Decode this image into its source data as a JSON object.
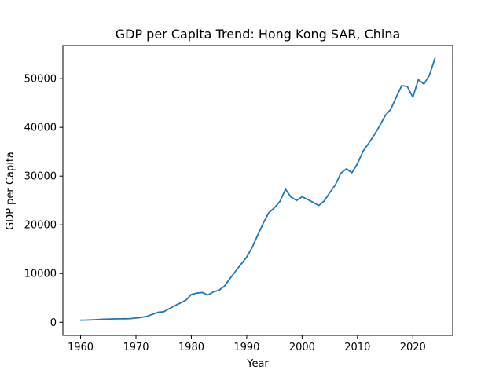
{
  "chart_data": {
    "type": "line",
    "title": "GDP per Capita Trend: Hong Kong SAR, China",
    "xlabel": "Year",
    "ylabel": "GDP per Capita",
    "xlim": [
      1956.8,
      2027.2
    ],
    "ylim": [
      -2700,
      56800
    ],
    "xticks": [
      1960,
      1970,
      1980,
      1990,
      2000,
      2010,
      2020
    ],
    "yticks": [
      0,
      10000,
      20000,
      30000,
      40000,
      50000
    ],
    "grid": false,
    "line_color": "#1f77b4",
    "series": [
      {
        "x": [
          1960,
          1961,
          1962,
          1963,
          1964,
          1965,
          1966,
          1967,
          1968,
          1969,
          1970,
          1971,
          1972,
          1973,
          1974,
          1975,
          1976,
          1977,
          1978,
          1979,
          1980,
          1981,
          1982,
          1983,
          1984,
          1985,
          1986,
          1987,
          1988,
          1989,
          1990,
          1991,
          1992,
          1993,
          1994,
          1995,
          1996,
          1997,
          1998,
          1999,
          2000,
          2001,
          2002,
          2003,
          2004,
          2005,
          2006,
          2007,
          2008,
          2009,
          2010,
          2011,
          2012,
          2013,
          2014,
          2015,
          2016,
          2017,
          2018,
          2019,
          2020,
          2021,
          2022,
          2023,
          2024
        ],
        "values": [
          430,
          440,
          480,
          540,
          620,
          650,
          690,
          710,
          720,
          750,
          870,
          1000,
          1200,
          1650,
          2050,
          2150,
          2780,
          3400,
          3950,
          4500,
          5700,
          5990,
          6100,
          5600,
          6250,
          6550,
          7450,
          9000,
          10500,
          11950,
          13400,
          15400,
          17900,
          20350,
          22500,
          23500,
          24800,
          27300,
          25700,
          25000,
          25750,
          25200,
          24600,
          23950,
          24900,
          26600,
          28200,
          30600,
          31500,
          30700,
          32550,
          35100,
          36700,
          38400,
          40300,
          42400,
          43700,
          46200,
          48600,
          48400,
          46200,
          49800,
          48900,
          50700,
          54200
        ]
      }
    ]
  }
}
